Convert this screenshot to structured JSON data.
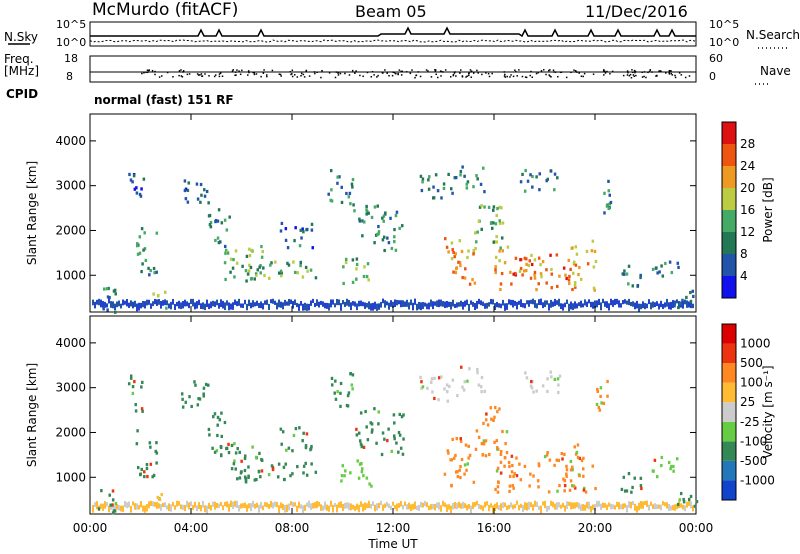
{
  "header": {
    "station": "McMurdo (fitACF)",
    "beam": "Beam 05",
    "date": "11/Dec/2016"
  },
  "panels": {
    "nsky_label": "N.Sky",
    "nsearch_label": "N.Search",
    "noise_ticks_left": [
      "10^5",
      "10^0"
    ],
    "noise_ticks_right": [
      "10^5",
      "10^0"
    ],
    "freq_label": "Freq.",
    "freq_unit": "[MHz]",
    "freq_ticks": [
      "18",
      "8"
    ],
    "nave_label": "Nave",
    "nave_ticks": [
      "60",
      "0"
    ],
    "cpid_label": "CPID",
    "cpid_text": "normal (fast) 151 RF"
  },
  "chart_data": [
    {
      "type": "heatmap",
      "name": "power",
      "ylabel": "Slant Range [km]",
      "xlabel": "Time UT",
      "x_ticks": [
        "00:00",
        "04:00",
        "08:00",
        "12:00",
        "16:00",
        "20:00",
        "00:00"
      ],
      "y_ticks": [
        1000,
        2000,
        3000,
        4000
      ],
      "ylim": [
        180,
        4600
      ],
      "xlim_hours": [
        0,
        24
      ],
      "colorbar_label": "Power [dB]",
      "colorbar_ticks": [
        "28",
        "24",
        "20",
        "16",
        "12",
        "8",
        "4"
      ],
      "colorbar_colors": [
        "#1111ee",
        "#2255aa",
        "#227755",
        "#44aa66",
        "#bbcc44",
        "#ee9922",
        "#ee5511",
        "#dd1111"
      ]
    },
    {
      "type": "heatmap",
      "name": "velocity",
      "ylabel": "Slant Range [km]",
      "xlabel": "Time UT",
      "x_ticks": [
        "00:00",
        "04:00",
        "08:00",
        "12:00",
        "16:00",
        "20:00",
        "00:00"
      ],
      "y_ticks": [
        1000,
        2000,
        3000,
        4000
      ],
      "ylim": [
        180,
        4600
      ],
      "xlim_hours": [
        0,
        24
      ],
      "colorbar_label": "Velocity [m s⁻¹]",
      "colorbar_ticks": [
        "1000",
        "500",
        "100",
        "25",
        "-25",
        "-100",
        "-500",
        "-1000"
      ],
      "colorbar_colors": [
        "#1144cc",
        "#2277bb",
        "#338855",
        "#66cc44",
        "#cccccc",
        "#ffbb33",
        "#ff8822",
        "#ee3311",
        "#dd0000"
      ]
    }
  ],
  "clusters": [
    {
      "h0": 0.3,
      "h1": 1.1,
      "r0": 200,
      "r1": 800,
      "p": 9,
      "v": "t"
    },
    {
      "h0": 1.5,
      "h1": 2.1,
      "r0": 2500,
      "r1": 3400,
      "p": 7,
      "v": "t"
    },
    {
      "h0": 1.8,
      "h1": 2.6,
      "r0": 1000,
      "r1": 2100,
      "p": 11,
      "v": "t"
    },
    {
      "h0": 2.4,
      "h1": 3.0,
      "r0": 300,
      "r1": 700,
      "p": 16,
      "v": "y"
    },
    {
      "h0": 3.6,
      "h1": 4.8,
      "r0": 2600,
      "r1": 3200,
      "p": 8,
      "v": "t"
    },
    {
      "h0": 4.6,
      "h1": 5.5,
      "r0": 1500,
      "r1": 2500,
      "p": 10,
      "v": "t"
    },
    {
      "h0": 5.3,
      "h1": 6.8,
      "r0": 900,
      "r1": 1800,
      "p": 14,
      "v": "t"
    },
    {
      "h0": 5.9,
      "h1": 8.9,
      "r0": 950,
      "r1": 1350,
      "p": 13,
      "v": "t"
    },
    {
      "h0": 7.5,
      "h1": 8.8,
      "r0": 1600,
      "r1": 2200,
      "p": 8,
      "v": "t"
    },
    {
      "h0": 9.4,
      "h1": 10.4,
      "r0": 2600,
      "r1": 3400,
      "p": 9,
      "v": "t"
    },
    {
      "h0": 9.9,
      "h1": 11.1,
      "r0": 800,
      "r1": 1400,
      "p": 15,
      "v": "g"
    },
    {
      "h0": 10.4,
      "h1": 11.4,
      "r0": 1700,
      "r1": 2600,
      "p": 11,
      "v": "t"
    },
    {
      "h0": 11.5,
      "h1": 12.4,
      "r0": 1500,
      "r1": 2500,
      "p": 10,
      "v": "t"
    },
    {
      "h0": 13.0,
      "h1": 14.5,
      "r0": 2700,
      "r1": 3300,
      "p": 8,
      "v": "s"
    },
    {
      "h0": 14.0,
      "h1": 15.2,
      "r0": 800,
      "r1": 1900,
      "p": 22,
      "v": "o"
    },
    {
      "h0": 14.6,
      "h1": 15.6,
      "r0": 2900,
      "r1": 3500,
      "p": 9,
      "v": "s"
    },
    {
      "h0": 15.2,
      "h1": 16.5,
      "r0": 1500,
      "r1": 2600,
      "p": 13,
      "v": "o"
    },
    {
      "h0": 16.0,
      "h1": 19.0,
      "r0": 700,
      "r1": 1600,
      "p": 24,
      "v": "o"
    },
    {
      "h0": 17.0,
      "h1": 18.6,
      "r0": 2900,
      "r1": 3400,
      "p": 9,
      "v": "s"
    },
    {
      "h0": 19.0,
      "h1": 20.0,
      "r0": 700,
      "r1": 1800,
      "p": 22,
      "v": "o"
    },
    {
      "h0": 20.0,
      "h1": 20.6,
      "r0": 2400,
      "r1": 3200,
      "p": 9,
      "v": "o"
    },
    {
      "h0": 21.0,
      "h1": 21.8,
      "r0": 700,
      "r1": 1300,
      "p": 11,
      "v": "t"
    },
    {
      "h0": 22.2,
      "h1": 23.3,
      "r0": 1000,
      "r1": 1500,
      "p": 9,
      "v": "g"
    },
    {
      "h0": 23.0,
      "h1": 24.0,
      "r0": 300,
      "r1": 700,
      "p": 8,
      "v": "t"
    }
  ]
}
